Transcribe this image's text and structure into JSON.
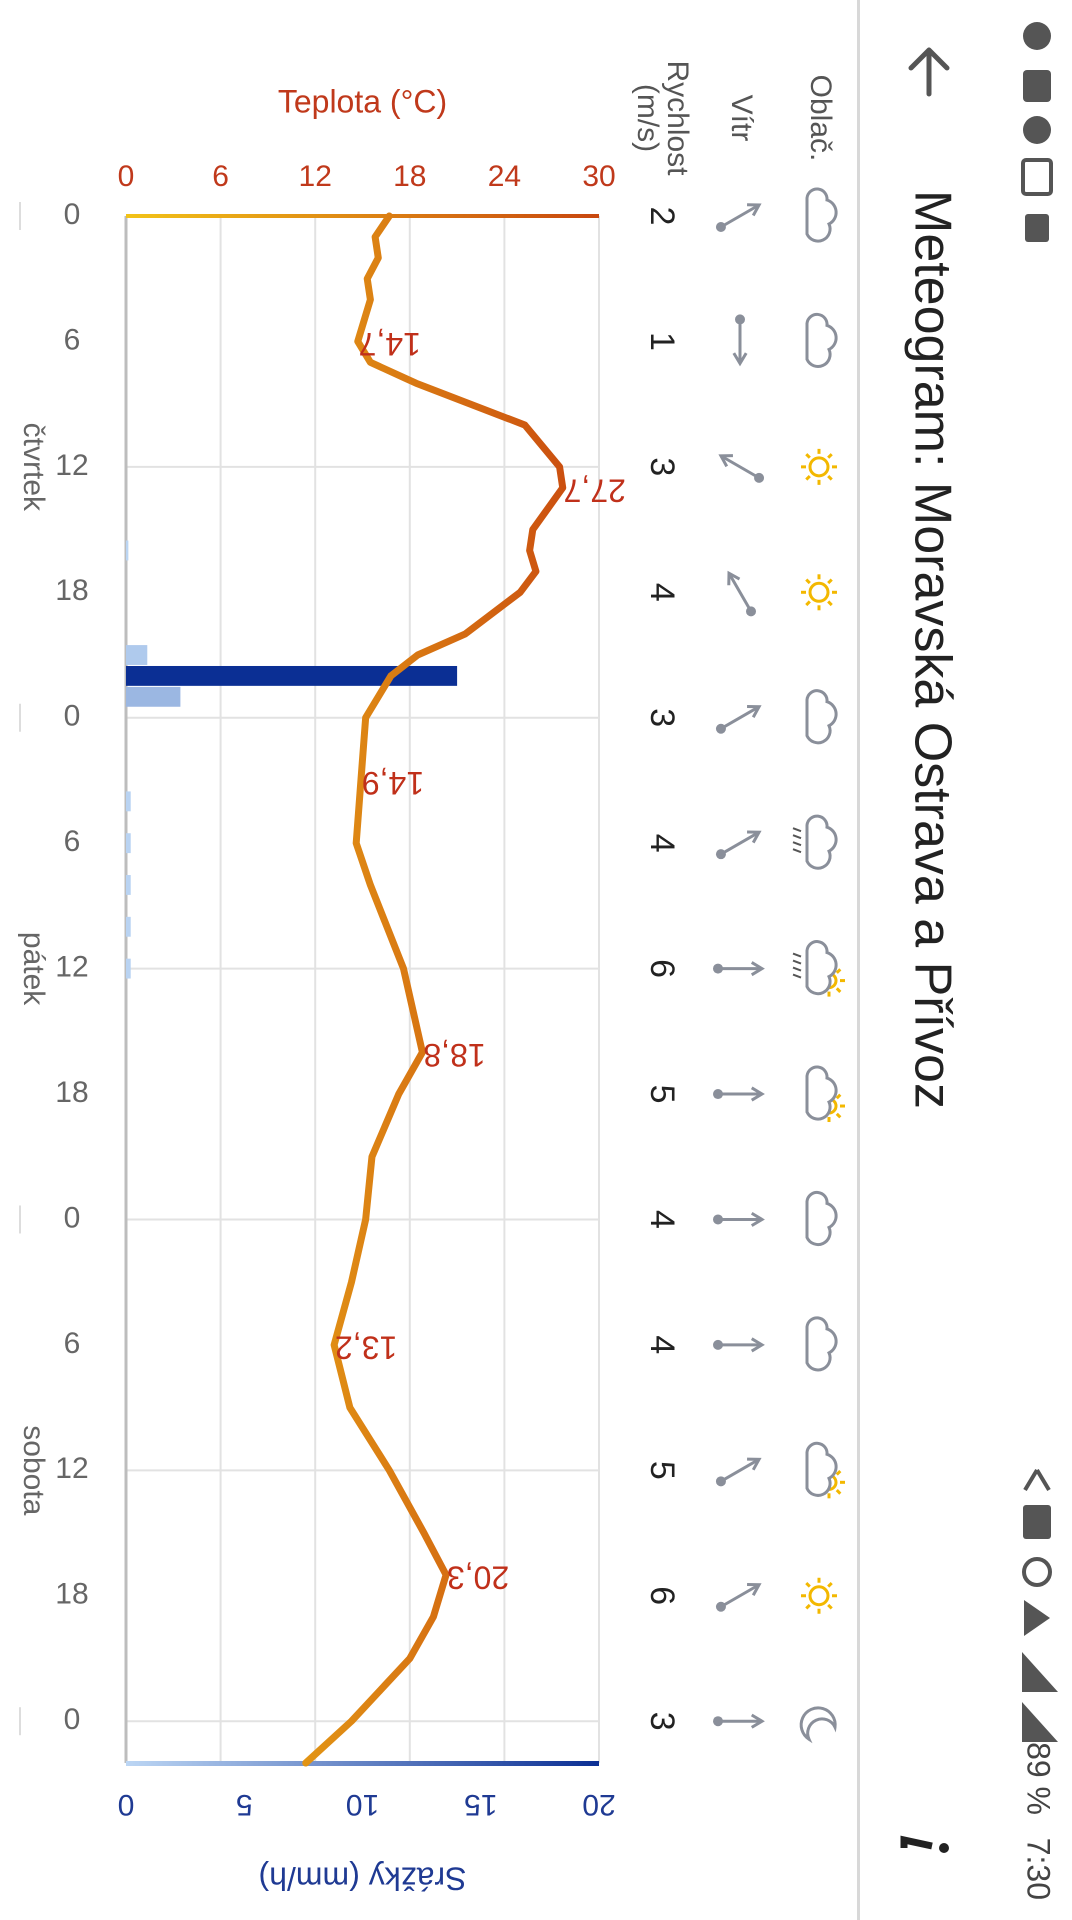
{
  "status_bar": {
    "battery": "89 %",
    "time": "7:30"
  },
  "header": {
    "title": "Meteogram: Moravská Ostrava a Přívoz"
  },
  "rows": {
    "labels": [
      "Oblač.",
      "Vítr",
      "Rychlost (m/s)"
    ],
    "wind_speed": [
      2,
      1,
      3,
      4,
      3,
      4,
      6,
      5,
      4,
      4,
      5,
      6,
      3
    ]
  },
  "chart_data": {
    "type": "line",
    "y_label": "Teplota (°C)",
    "y2_label": "Srážky (mm/h)",
    "xlim": [
      0,
      74
    ],
    "xticks": [
      0,
      6,
      12,
      18,
      {
        "value": 24,
        "label": "0"
      },
      {
        "value": 30,
        "label": "6"
      },
      {
        "value": 36,
        "label": "12"
      },
      {
        "value": 42,
        "label": "18"
      },
      {
        "value": 48,
        "label": "0"
      },
      {
        "value": 54,
        "label": "6"
      },
      {
        "value": 60,
        "label": "12"
      },
      {
        "value": 66,
        "label": "18"
      },
      {
        "value": 72,
        "label": "0"
      }
    ],
    "ylim": [
      0,
      30
    ],
    "yticks": [
      0,
      6,
      12,
      18,
      24,
      30
    ],
    "y2lim": [
      0,
      20
    ],
    "y2ticks": [
      0,
      5,
      10,
      15,
      20
    ],
    "grid": true,
    "days": [
      {
        "x": 12,
        "label": "čtvrtek"
      },
      {
        "x": 36,
        "label": "pátek"
      },
      {
        "x": 60,
        "label": "sobota"
      }
    ],
    "series": [
      {
        "x": [
          0,
          1,
          2,
          3,
          4,
          6,
          7,
          8,
          10,
          12,
          13,
          15,
          16,
          17,
          18,
          20,
          21,
          22,
          23,
          24,
          27,
          30,
          32,
          36,
          40,
          42,
          45,
          48,
          51,
          54,
          57,
          60,
          63,
          65,
          67,
          69,
          72,
          74
        ],
        "values": [
          16.7,
          15.8,
          16.0,
          15.3,
          15.5,
          14.7,
          15.5,
          18.4,
          25.3,
          27.5,
          27.7,
          25.8,
          25.6,
          26.0,
          25.0,
          21.5,
          18.5,
          16.8,
          16.0,
          15.2,
          14.9,
          14.6,
          15.5,
          17.6,
          18.8,
          17.3,
          15.6,
          15.2,
          14.3,
          13.2,
          14.2,
          16.7,
          18.9,
          20.3,
          19.5,
          18.0,
          14.3,
          11.4
        ],
        "colors": [
          "#f2c318",
          "#c8470f"
        ]
      },
      {
        "type": "bar",
        "axis": "y2",
        "x": [
          16,
          21,
          22,
          23,
          28,
          30,
          32,
          34,
          36
        ],
        "values": [
          0.1,
          0.9,
          14.0,
          2.3,
          0.2,
          0.2,
          0.2,
          0.2,
          0.2
        ],
        "colors": [
          "#bcd6f4",
          "#0b2f94"
        ]
      }
    ],
    "annotations": [
      {
        "x": 6,
        "value": 14.7,
        "label": "14,7"
      },
      {
        "x": 13,
        "value": 27.7,
        "label": "27,7"
      },
      {
        "x": 27,
        "value": 14.9,
        "label": "14,9"
      },
      {
        "x": 40,
        "value": 18.8,
        "label": "18,8"
      },
      {
        "x": 54,
        "value": 13.2,
        "label": "13,2"
      },
      {
        "x": 65,
        "value": 20.3,
        "label": "20,3"
      }
    ]
  }
}
